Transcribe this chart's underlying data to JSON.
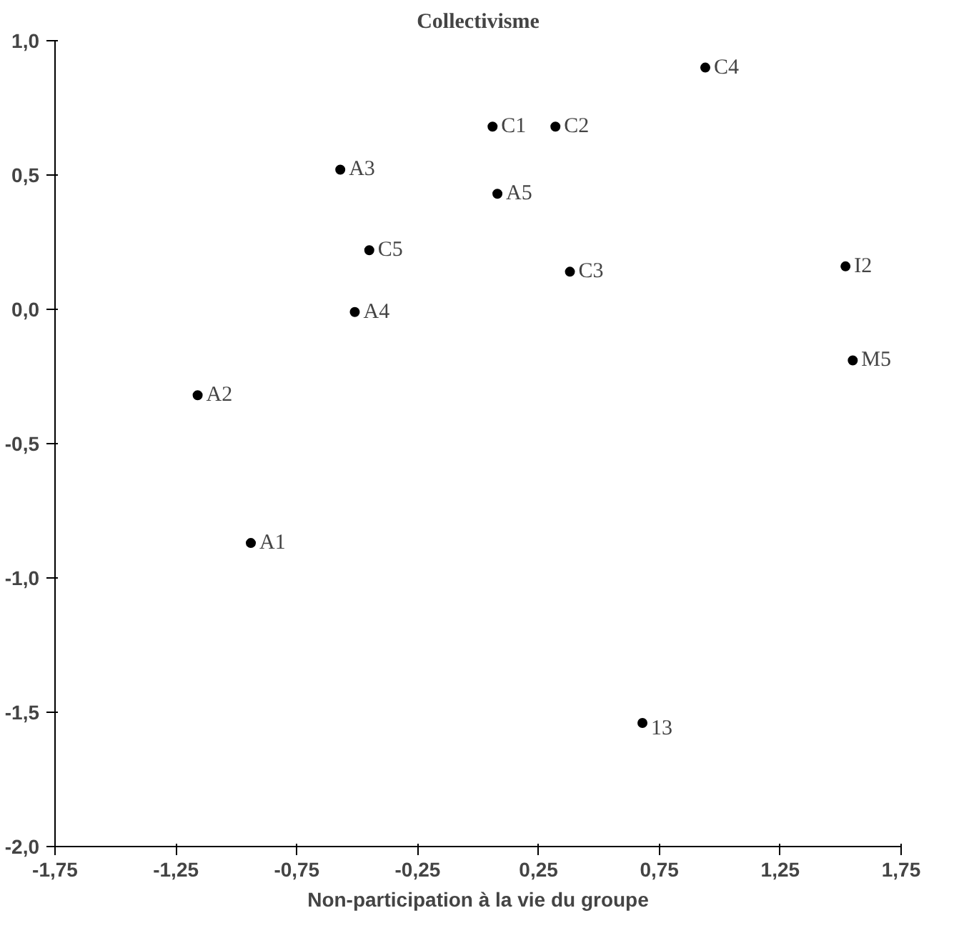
{
  "chart_data": {
    "type": "scatter",
    "title": "Collectivisme",
    "xlabel": "Non-participation à la vie du groupe",
    "x": [
      0.94,
      0.06,
      0.32,
      -0.57,
      0.08,
      -0.45,
      0.38,
      1.52,
      -0.51,
      1.55,
      -1.16,
      -0.94,
      0.68
    ],
    "values": [
      0.9,
      0.68,
      0.68,
      0.52,
      0.43,
      0.22,
      0.14,
      0.16,
      -0.01,
      -0.19,
      -0.32,
      -0.87,
      -1.54
    ],
    "color": "#000000",
    "marker": "circle",
    "grid": false,
    "xlim": [
      -1.75,
      1.75
    ],
    "ylim": [
      -2.0,
      1.0
    ],
    "xticks": [
      {
        "value": -1.75,
        "label": "-1,75"
      },
      {
        "value": -1.25,
        "label": "-1,25"
      },
      {
        "value": -0.75,
        "label": "-0,75"
      },
      {
        "value": -0.25,
        "label": "-0,25"
      },
      {
        "value": 0.25,
        "label": "0,25"
      },
      {
        "value": 0.75,
        "label": "0,75"
      },
      {
        "value": 1.25,
        "label": "1,25"
      },
      {
        "value": 1.75,
        "label": "1,75"
      }
    ],
    "yticks": [
      {
        "value": 1.0,
        "label": "1,0"
      },
      {
        "value": 0.5,
        "label": "0,5"
      },
      {
        "value": 0.0,
        "label": "0,0"
      },
      {
        "value": -0.5,
        "label": "-0,5"
      },
      {
        "value": -1.0,
        "label": "-1,0"
      },
      {
        "value": -1.5,
        "label": "-1,5"
      },
      {
        "value": -2.0,
        "label": "-2,0"
      }
    ],
    "annotations": [
      {
        "text": "C4",
        "x": 0.94,
        "y": 0.9
      },
      {
        "text": "C1",
        "x": 0.06,
        "y": 0.68
      },
      {
        "text": "C2",
        "x": 0.32,
        "y": 0.68
      },
      {
        "text": "A3",
        "x": -0.57,
        "y": 0.52
      },
      {
        "text": "A5",
        "x": 0.08,
        "y": 0.43
      },
      {
        "text": "C5",
        "x": -0.45,
        "y": 0.22
      },
      {
        "text": "C3",
        "x": 0.38,
        "y": 0.14
      },
      {
        "text": "I2",
        "x": 1.52,
        "y": 0.16
      },
      {
        "text": "A4",
        "x": -0.51,
        "y": -0.01
      },
      {
        "text": "M5",
        "x": 1.55,
        "y": -0.19
      },
      {
        "text": "A2",
        "x": -1.16,
        "y": -0.32
      },
      {
        "text": "A1",
        "x": -0.94,
        "y": -0.87
      },
      {
        "text": "13",
        "x": 0.68,
        "y": -1.54
      }
    ]
  }
}
